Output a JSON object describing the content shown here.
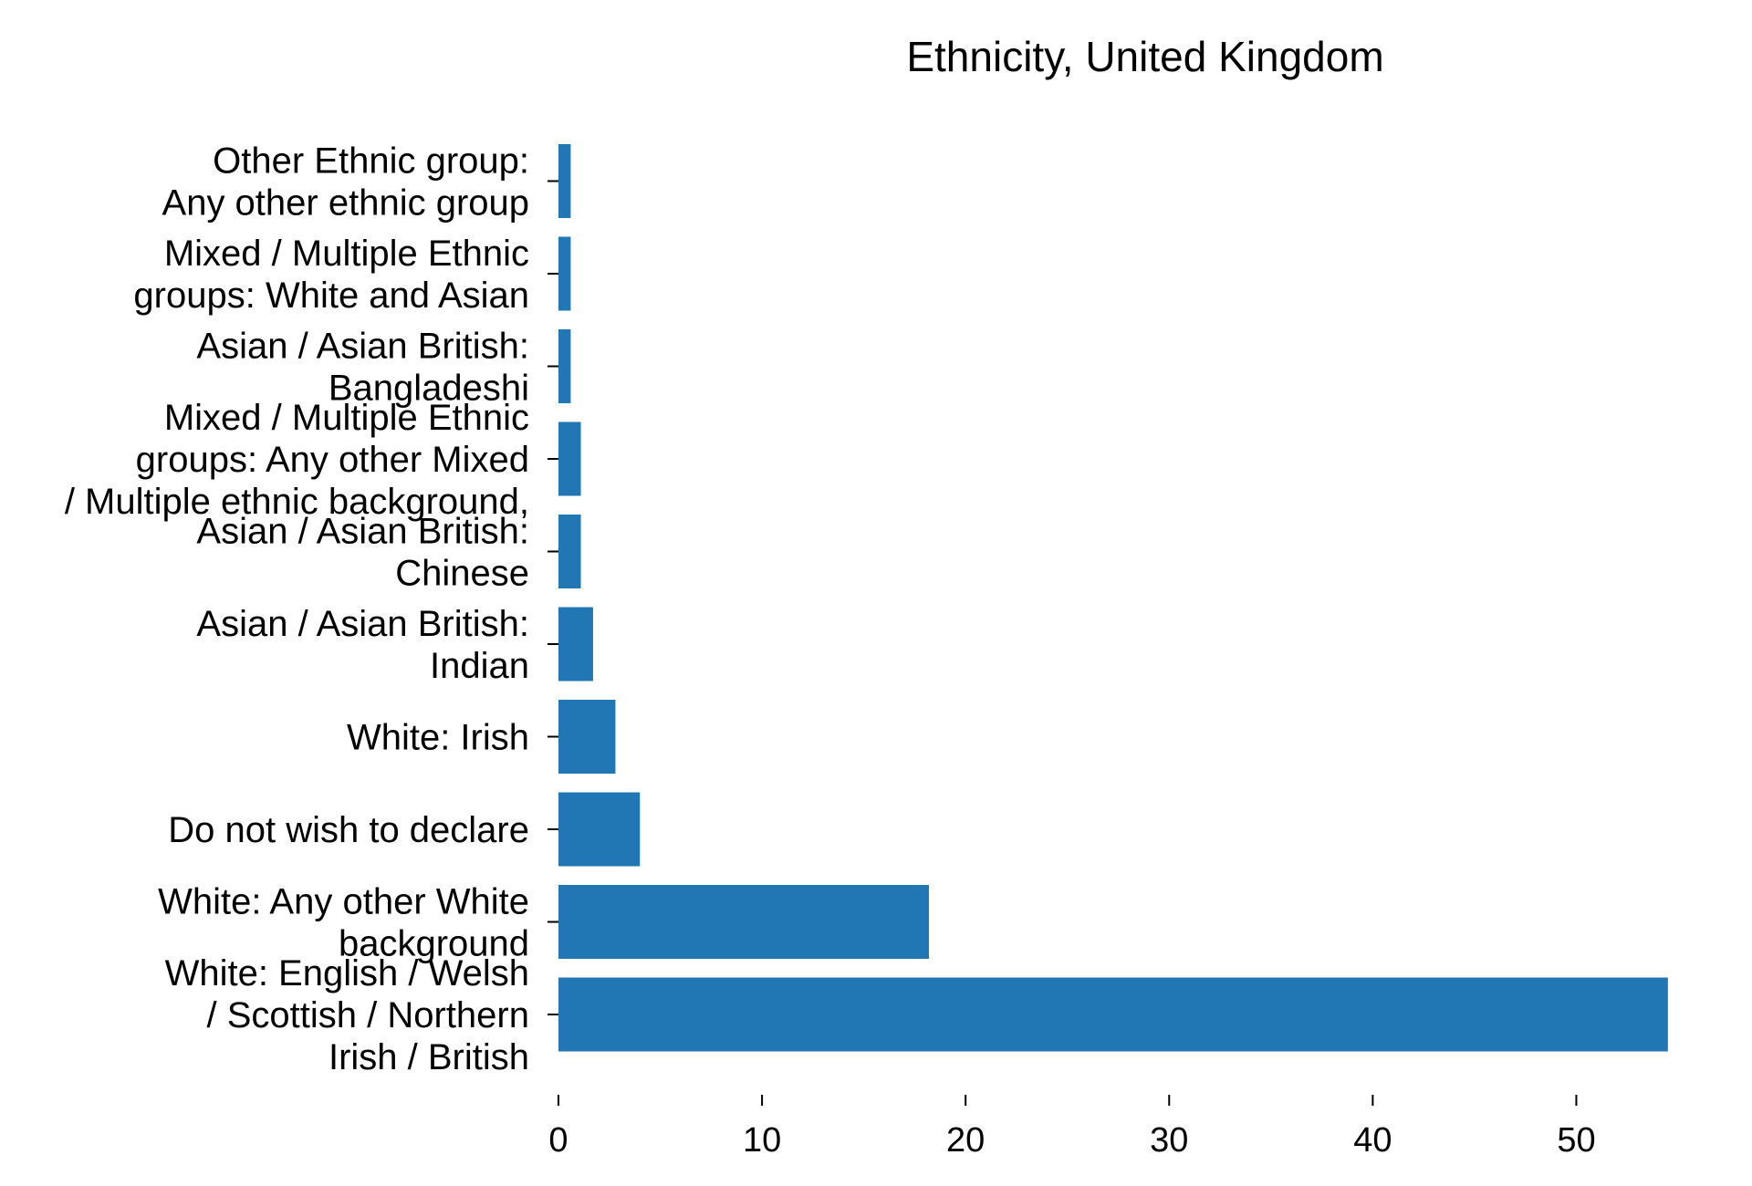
{
  "chart_data": {
    "type": "bar",
    "orientation": "horizontal",
    "title": "Ethnicity, United Kingdom",
    "xlabel": "",
    "ylabel": "",
    "bar_color": "#2077b4",
    "categories": [
      "White: English / Welsh / Scottish / Northern Irish / British",
      "White: Any other White background",
      "Do not wish to declare",
      "White: Irish",
      "Asian / Asian British: Indian",
      "Asian / Asian British: Chinese",
      "Mixed / Multiple Ethnic groups: Any other Mixed / Multiple ethnic background,",
      "Asian / Asian British: Bangladeshi",
      "Mixed / Multiple Ethnic groups: White and Asian",
      "Other Ethnic group: Any other ethnic group"
    ],
    "category_label_lines": [
      [
        "White: English / Welsh",
        "/ Scottish / Northern",
        "Irish / British"
      ],
      [
        "White: Any other White",
        "background"
      ],
      [
        "Do not wish to declare"
      ],
      [
        "White: Irish"
      ],
      [
        "Asian / Asian British:",
        "Indian"
      ],
      [
        "Asian / Asian British:",
        "Chinese"
      ],
      [
        "Mixed / Multiple Ethnic",
        "groups: Any other Mixed",
        "/ Multiple ethnic background,"
      ],
      [
        "Asian / Asian British:",
        "Bangladeshi"
      ],
      [
        "Mixed / Multiple Ethnic",
        "groups: White and Asian"
      ],
      [
        "Other Ethnic group:",
        "Any other ethnic group"
      ]
    ],
    "values": [
      54.5,
      18.2,
      4.0,
      2.8,
      1.7,
      1.1,
      1.1,
      0.6,
      0.6,
      0.6
    ],
    "xlim": [
      0,
      55
    ],
    "xticks": [
      0,
      10,
      20,
      30,
      40,
      50
    ],
    "grid": false
  }
}
